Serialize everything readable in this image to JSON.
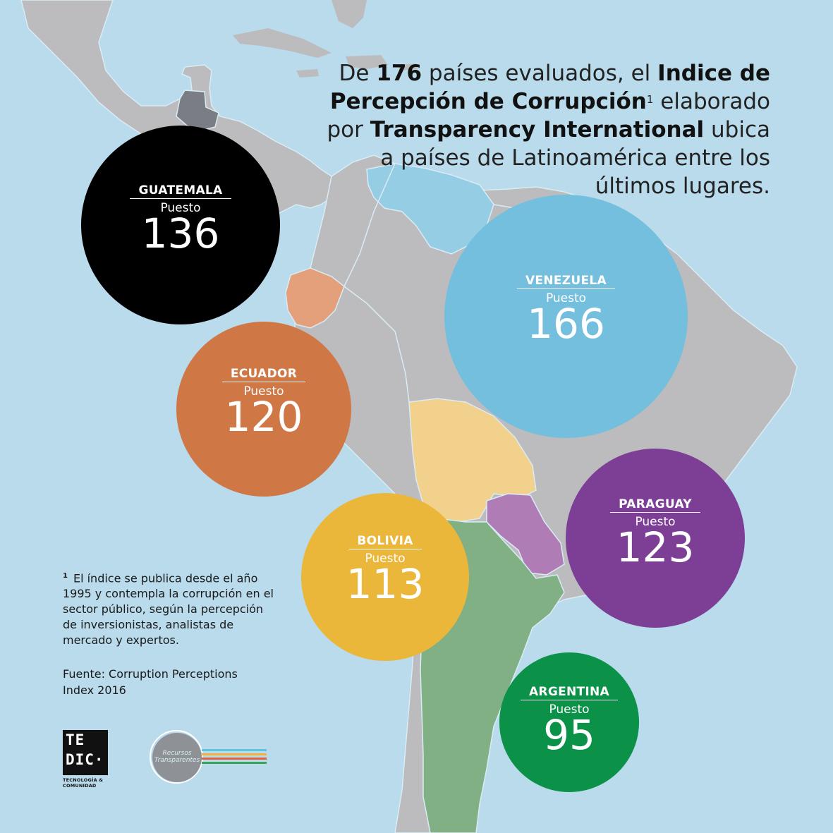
{
  "headline": {
    "p1": "De ",
    "b1": "176",
    "p2": " países evaluados, el ",
    "b2": "Indice de Percepción de Corrupción",
    "sup": "1",
    "p3": " elaborado por ",
    "b3": "Transparency International",
    "p4": " ubica a países de Latinoamérica entre los últimos lugares."
  },
  "rank_label": "Puesto",
  "countries": [
    {
      "name": "GUATEMALA",
      "rank": "136",
      "color": "#000000"
    },
    {
      "name": "VENEZUELA",
      "rank": "166",
      "color": "#74bfdd"
    },
    {
      "name": "ECUADOR",
      "rank": "120",
      "color": "#d07746"
    },
    {
      "name": "PARAGUAY",
      "rank": "123",
      "color": "#7d3f96"
    },
    {
      "name": "BOLIVIA",
      "rank": "113",
      "color": "#ebb73b"
    },
    {
      "name": "ARGENTINA",
      "rank": "95",
      "color": "#0b9148"
    }
  ],
  "note": {
    "marker": "1",
    "text": "El índice se publica desde el año 1995 y contempla la corrupción en el sector público, según la percepción de inversionistas, analistas de mercado y expertos."
  },
  "source": "Fuente: Corruption Perceptions Index 2016",
  "logos": {
    "tedic_line1": "TE",
    "tedic_line2": "DIC·",
    "tedic_tagline": "TECNOLOGÍA & COMUNIDAD",
    "rt_text": "Recursos Transparentes"
  },
  "map_colors": {
    "ocean": "#b9dbec",
    "land": "#bcbcbf",
    "guatemala": "#7a7d83",
    "venezuela": "#95cde5",
    "ecuador": "#e3a07a",
    "bolivia": "#f2d18c",
    "paraguay": "#b07cb6",
    "argentina": "#80b084"
  }
}
